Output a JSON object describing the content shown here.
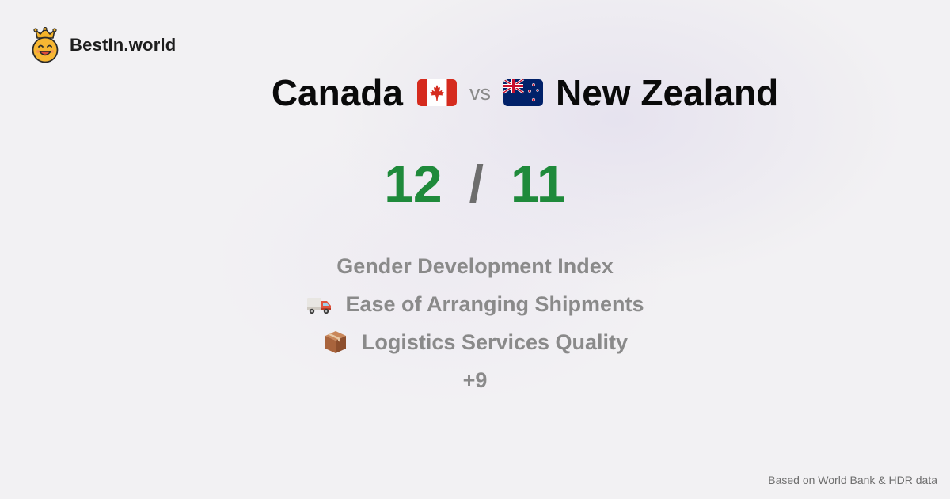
{
  "brand": {
    "name": "BestIn.world",
    "icon": "crowned-smiley-icon"
  },
  "comparison": {
    "left_country": "Canada",
    "left_flag": "canada-flag-icon",
    "vs_label": "vs",
    "right_country": "New Zealand",
    "right_flag": "new-zealand-flag-icon"
  },
  "scores": {
    "left": "12",
    "separator": "/",
    "right": "11",
    "color": "#1f8a3b"
  },
  "metrics": [
    {
      "label": "Gender Development Index",
      "icon": ""
    },
    {
      "label": "Ease of Arranging Shipments",
      "icon": "delivery-truck-icon"
    },
    {
      "label": "Logistics Services Quality",
      "icon": "package-box-icon"
    }
  ],
  "more_count": "+9",
  "footer": {
    "source": "Based on World Bank & HDR data"
  }
}
